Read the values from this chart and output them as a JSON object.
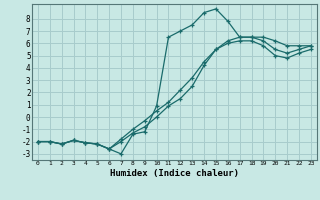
{
  "xlabel": "Humidex (Indice chaleur)",
  "background_color": "#c8e8e4",
  "grid_color": "#a8cccc",
  "line_color": "#1a6b6b",
  "xlim": [
    -0.5,
    23.5
  ],
  "ylim": [
    -3.5,
    9.2
  ],
  "xticks": [
    0,
    1,
    2,
    3,
    4,
    5,
    6,
    7,
    8,
    9,
    10,
    11,
    12,
    13,
    14,
    15,
    16,
    17,
    18,
    19,
    20,
    21,
    22,
    23
  ],
  "yticks": [
    -3,
    -2,
    -1,
    0,
    1,
    2,
    3,
    4,
    5,
    6,
    7,
    8
  ],
  "line1_x": [
    0,
    1,
    2,
    3,
    4,
    5,
    6,
    7,
    8,
    9,
    10,
    11,
    12,
    13,
    14,
    15,
    16,
    17,
    18,
    19,
    20,
    21,
    22,
    23
  ],
  "line1_y": [
    -2.0,
    -2.0,
    -2.2,
    -1.9,
    -2.1,
    -2.2,
    -2.6,
    -3.0,
    -1.4,
    -1.2,
    0.9,
    6.5,
    7.0,
    7.5,
    8.5,
    8.8,
    7.8,
    6.5,
    6.5,
    6.5,
    6.2,
    5.8,
    5.8,
    5.8
  ],
  "line2_x": [
    0,
    1,
    2,
    3,
    4,
    5,
    6,
    7,
    8,
    9,
    10,
    11,
    12,
    13,
    14,
    15,
    16,
    17,
    18,
    19,
    20,
    21,
    22,
    23
  ],
  "line2_y": [
    -2.0,
    -2.0,
    -2.2,
    -1.9,
    -2.1,
    -2.2,
    -2.6,
    -2.0,
    -1.3,
    -0.8,
    0.0,
    0.9,
    1.5,
    2.5,
    4.2,
    5.5,
    6.2,
    6.5,
    6.5,
    6.2,
    5.5,
    5.2,
    5.5,
    5.8
  ],
  "line3_x": [
    0,
    1,
    2,
    3,
    4,
    5,
    6,
    7,
    8,
    9,
    10,
    11,
    12,
    13,
    14,
    15,
    16,
    17,
    18,
    19,
    20,
    21,
    22,
    23
  ],
  "line3_y": [
    -2.0,
    -2.0,
    -2.2,
    -1.9,
    -2.1,
    -2.2,
    -2.6,
    -1.8,
    -1.0,
    -0.3,
    0.5,
    1.2,
    2.2,
    3.2,
    4.5,
    5.5,
    6.0,
    6.2,
    6.2,
    5.8,
    5.0,
    4.8,
    5.2,
    5.5
  ]
}
